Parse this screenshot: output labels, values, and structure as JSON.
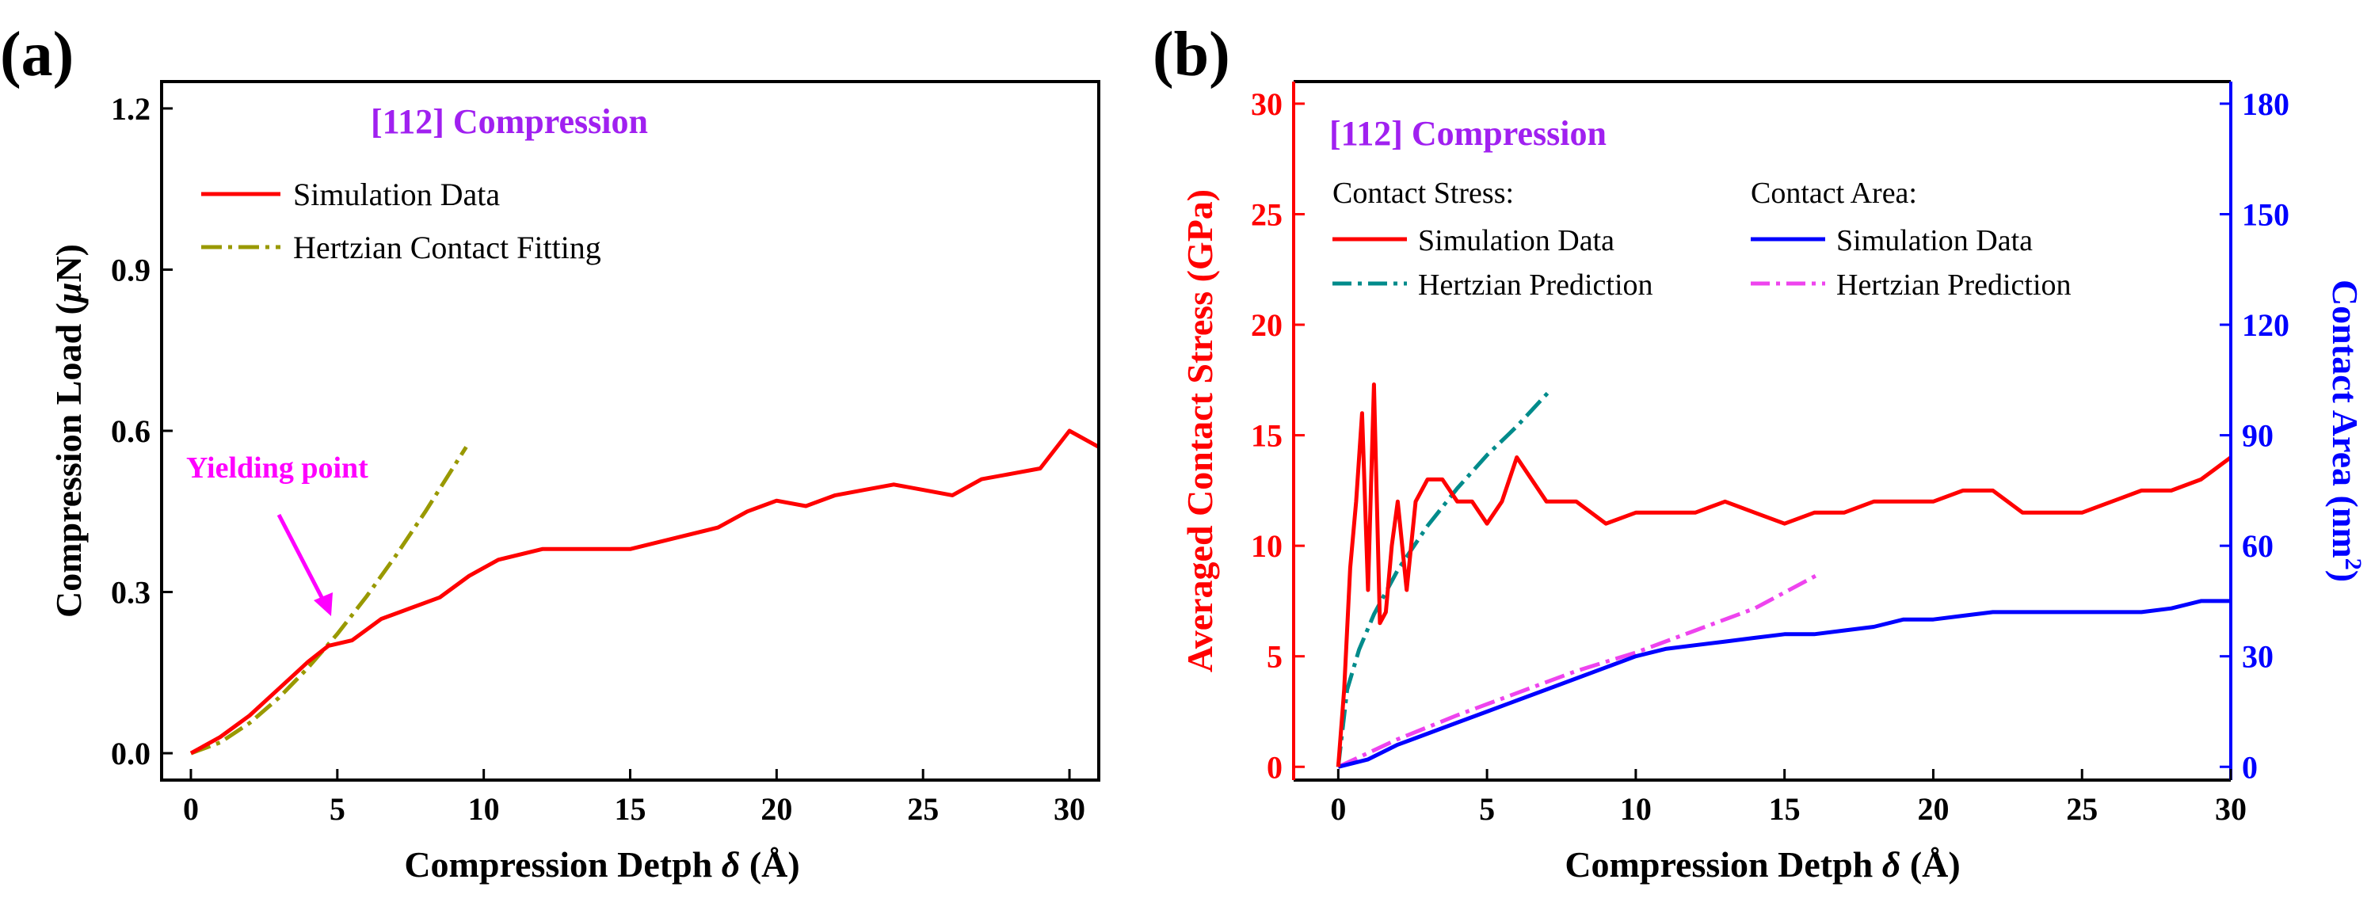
{
  "chart_data": [
    {
      "panel_label": "(a)",
      "type": "line",
      "title": "[112] Compression",
      "xlabel_text": "Compression Detph ",
      "xlabel_symbol": "δ",
      "xlabel_unit": " (Å)",
      "ylabel_text": "Compression Load (",
      "ylabel_symbol": "μ",
      "ylabel_unit": "N)",
      "xlim": [
        -1,
        31
      ],
      "ylim": [
        -0.05,
        1.25
      ],
      "xticks": [
        0,
        5,
        10,
        15,
        20,
        25,
        30
      ],
      "yticks": [
        0.0,
        0.3,
        0.6,
        0.9,
        1.2
      ],
      "ytick_labels": [
        "0.0",
        "0.3",
        "0.6",
        "0.9",
        "1.2"
      ],
      "legend_position": "top-left",
      "annotation": {
        "text": "Yielding point",
        "x": 4.7,
        "y": 0.2,
        "color": "#ff00ff"
      },
      "series": [
        {
          "name": "Simulation Data",
          "color": "#ff0000",
          "style": "solid",
          "x": [
            0,
            1,
            2,
            3,
            4,
            4.7,
            5.5,
            6.5,
            7.5,
            8.5,
            9.5,
            10.5,
            12,
            13.5,
            15,
            16.5,
            18,
            19,
            20,
            21,
            22,
            23,
            24,
            25,
            26,
            27,
            28,
            29,
            30,
            31
          ],
          "y": [
            0.0,
            0.03,
            0.07,
            0.12,
            0.17,
            0.2,
            0.21,
            0.25,
            0.27,
            0.29,
            0.33,
            0.36,
            0.38,
            0.38,
            0.38,
            0.4,
            0.42,
            0.45,
            0.47,
            0.46,
            0.48,
            0.49,
            0.5,
            0.49,
            0.48,
            0.51,
            0.52,
            0.53,
            0.6,
            0.57
          ]
        },
        {
          "name": "Hertzian Contact Fitting",
          "color": "#999900",
          "style": "dashdot",
          "x": [
            0,
            1,
            2,
            3,
            4,
            5,
            6,
            7,
            8,
            9.4
          ],
          "y": [
            0.0,
            0.02,
            0.056,
            0.103,
            0.159,
            0.222,
            0.292,
            0.368,
            0.449,
            0.57
          ]
        }
      ]
    },
    {
      "panel_label": "(b)",
      "type": "line",
      "title": "[112] Compression",
      "xlabel_text": "Compression Detph ",
      "xlabel_symbol": "δ",
      "xlabel_unit": " (Å)",
      "ylabel_left": "Averaged Contact Stress (GPa)",
      "ylabel_right_text": "Contact Area (nm",
      "ylabel_right_sup": "2",
      "ylabel_right_close": ")",
      "xlim": [
        -1.5,
        30
      ],
      "ylim_left": [
        -0.6,
        31
      ],
      "ylim_right": [
        -3.6,
        186
      ],
      "xticks": [
        0,
        5,
        10,
        15,
        20,
        25,
        30
      ],
      "yticks_left": [
        0,
        5,
        10,
        15,
        20,
        25,
        30
      ],
      "yticks_right": [
        0,
        30,
        60,
        90,
        120,
        150,
        180
      ],
      "legend_position": "top-left",
      "legend_groups": [
        "Contact Stress:",
        "Contact Area:"
      ],
      "left_axis_color": "#ff0000",
      "right_axis_color": "#0000ff",
      "series": [
        {
          "name": "Simulation Data",
          "group": "Contact Stress",
          "axis": "left",
          "color": "#ff0000",
          "style": "solid",
          "x": [
            0,
            0.2,
            0.4,
            0.6,
            0.8,
            1.0,
            1.2,
            1.4,
            1.6,
            1.8,
            2.0,
            2.3,
            2.6,
            3.0,
            3.5,
            4.0,
            4.5,
            5.0,
            5.5,
            6.0,
            7,
            8,
            9,
            10,
            11,
            12,
            13,
            14,
            15,
            16,
            17,
            18,
            19,
            20,
            21,
            22,
            23,
            24,
            25,
            26,
            27,
            28,
            29,
            30
          ],
          "y": [
            0,
            3.5,
            9,
            12,
            16,
            8,
            17.3,
            6.5,
            7,
            10,
            12,
            8,
            12,
            13,
            13,
            12,
            12,
            11,
            12,
            14,
            12,
            12,
            11,
            11.5,
            11.5,
            11.5,
            12,
            11.5,
            11,
            11.5,
            11.5,
            12,
            12,
            12,
            12.5,
            12.5,
            11.5,
            11.5,
            11.5,
            12,
            12.5,
            12.5,
            13,
            14
          ]
        },
        {
          "name": "Hertzian Prediction",
          "group": "Contact Stress",
          "axis": "left",
          "color": "#008b8b",
          "style": "dashdot",
          "x": [
            0,
            0.3,
            0.7,
            1.2,
            2,
            3,
            4,
            5,
            6,
            7.1
          ],
          "y": [
            0,
            3.5,
            5.3,
            6.9,
            8.9,
            10.9,
            12.6,
            14.1,
            15.4,
            17.0
          ]
        },
        {
          "name": "Simulation Data",
          "group": "Contact Area",
          "axis": "right",
          "color": "#0000ff",
          "style": "solid",
          "x": [
            0,
            1,
            2,
            3,
            4,
            5,
            6,
            7,
            8,
            9,
            10,
            11,
            12,
            13,
            14,
            15,
            16,
            17,
            18,
            19,
            20,
            21,
            22,
            23,
            24,
            25,
            26,
            27,
            28,
            29,
            30
          ],
          "y": [
            0,
            2,
            6,
            9,
            12,
            15,
            18,
            21,
            24,
            27,
            30,
            32,
            33,
            34,
            35,
            36,
            36,
            37,
            38,
            40,
            40,
            41,
            42,
            42,
            42,
            42,
            42,
            42,
            43,
            45,
            45
          ]
        },
        {
          "name": "Hertzian Prediction",
          "group": "Contact Area",
          "axis": "right",
          "color": "#ee44ee",
          "style": "dashdot",
          "x": [
            0,
            2,
            4,
            6,
            8,
            10,
            12,
            14,
            16.2
          ],
          "y": [
            0,
            7.5,
            14,
            20,
            26,
            31,
            37,
            43,
            52.5
          ]
        }
      ]
    }
  ]
}
